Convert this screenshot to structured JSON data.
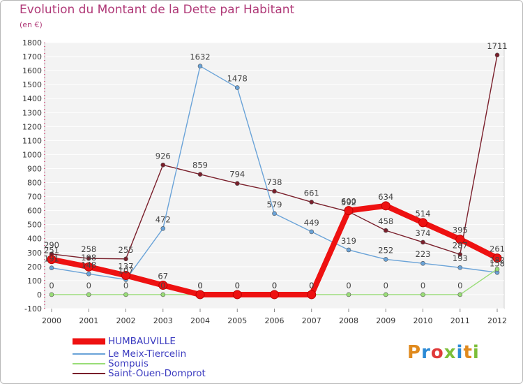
{
  "title": "Evolution du Montant de la Dette par Habitant",
  "unit_label": "(en €)",
  "logo_text": "Proxiti",
  "chart_data": {
    "type": "line",
    "title": "Evolution du Montant de la Dette par Habitant",
    "subtitle": "(en €)",
    "xlabel": "",
    "ylabel": "",
    "x": [
      "2000",
      "2001",
      "2002",
      "2003",
      "2004",
      "2005",
      "2006",
      "2007",
      "2008",
      "2009",
      "2010",
      "2011",
      "2012"
    ],
    "ylim": [
      -100,
      1800
    ],
    "yticks": [
      -100,
      0,
      100,
      200,
      300,
      400,
      500,
      600,
      700,
      800,
      900,
      1000,
      1100,
      1200,
      1300,
      1400,
      1500,
      1600,
      1700,
      1800
    ],
    "grid": "horizontal",
    "legend_position": "bottom",
    "series": [
      {
        "name": "HUMBAUVILLE",
        "color": "#ee1111",
        "values": [
          251,
          198,
          137,
          67,
          0,
          0,
          0,
          0,
          600,
          634,
          514,
          395,
          261
        ]
      },
      {
        "name": "Le Meix-Tiercelin",
        "color": "#6aa3d8",
        "values": [
          191,
          148,
          107,
          472,
          1632,
          1478,
          579,
          449,
          319,
          252,
          223,
          193,
          158
        ]
      },
      {
        "name": "Sompuis",
        "color": "#99dd77",
        "values": [
          0,
          0,
          0,
          0,
          0,
          0,
          0,
          0,
          0,
          0,
          0,
          0,
          182
        ]
      },
      {
        "name": "Saint-Ouen-Domprot",
        "color": "#7a1f2b",
        "values": [
          290,
          258,
          255,
          926,
          859,
          794,
          738,
          661,
          592,
          458,
          374,
          287,
          1711
        ]
      }
    ]
  }
}
